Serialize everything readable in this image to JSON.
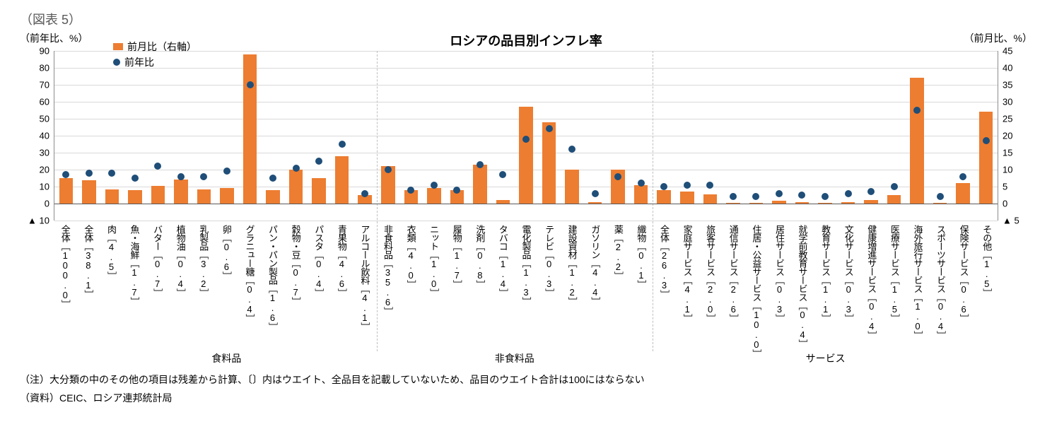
{
  "figure_label": "（図表 5）",
  "chart": {
    "title": "ロシアの品目別インフレ率",
    "yaxis_left": {
      "title": "（前年比、%）",
      "min": -10,
      "max": 90,
      "ticks": [
        -10,
        0,
        10,
        20,
        30,
        40,
        50,
        60,
        70,
        80,
        90
      ]
    },
    "yaxis_right": {
      "title": "（前月比、%）",
      "min": -5,
      "max": 45,
      "ticks": [
        -5,
        0,
        5,
        10,
        15,
        20,
        25,
        30,
        35,
        40,
        45
      ]
    },
    "legend": {
      "bar_label": "前月比（右軸）",
      "dot_label": "前年比"
    },
    "colors": {
      "bar": "#ed7d31",
      "dot": "#1f4e78",
      "grid": "#d9d9d9",
      "axis": "#8c8c8c",
      "background": "#ffffff",
      "divider": "#bfbfbf"
    },
    "bar_width": 0.6,
    "groups": [
      {
        "label": "食料品",
        "start": 1,
        "end": 13
      },
      {
        "label": "非食料品",
        "start": 14,
        "end": 25
      },
      {
        "label": "サービス",
        "start": 26,
        "end": 40
      }
    ],
    "items": [
      {
        "label": "全体［100.0］",
        "yoy": 17,
        "mom": 7.5
      },
      {
        "label": "全体［38.1］",
        "yoy": 18,
        "mom": 6.8
      },
      {
        "label": "肉［4.5］",
        "yoy": 18,
        "mom": 4.2
      },
      {
        "label": "魚・海鮮［1.7］",
        "yoy": 15,
        "mom": 4.0
      },
      {
        "label": "バター［0.7］",
        "yoy": 22,
        "mom": 5.2
      },
      {
        "label": "植物油［0.4］",
        "yoy": 16,
        "mom": 7.0
      },
      {
        "label": "乳製品［3.2］",
        "yoy": 16,
        "mom": 4.2
      },
      {
        "label": "卵［0.6］",
        "yoy": 19,
        "mom": 4.5
      },
      {
        "label": "グラニュー糖［0.4］",
        "yoy": 70,
        "mom": 44.0
      },
      {
        "label": "パン・パン製品［1.6］",
        "yoy": 15,
        "mom": 4.0
      },
      {
        "label": "穀物・豆［0.7］",
        "yoy": 21,
        "mom": 10.0
      },
      {
        "label": "パスタ［0.4］",
        "yoy": 25,
        "mom": 7.5
      },
      {
        "label": "青果物［4.6］",
        "yoy": 35,
        "mom": 14.0
      },
      {
        "label": "アルコール飲料［4.1］",
        "yoy": 6,
        "mom": 2.5
      },
      {
        "label": "非食料品［35.6］",
        "yoy": 20,
        "mom": 11.0
      },
      {
        "label": "衣類［4.0］",
        "yoy": 8,
        "mom": 4.0
      },
      {
        "label": "ニット［1.0］",
        "yoy": 11,
        "mom": 4.5
      },
      {
        "label": "履物［1.7］",
        "yoy": 8,
        "mom": 4.0
      },
      {
        "label": "洗剤［0.8］",
        "yoy": 23,
        "mom": 11.5
      },
      {
        "label": "タバコ［1.4］",
        "yoy": 17,
        "mom": 1.0
      },
      {
        "label": "電化製品［1.3］",
        "yoy": 38,
        "mom": 28.5
      },
      {
        "label": "テレビ［0.3］",
        "yoy": 44,
        "mom": 24.0
      },
      {
        "label": "建設資材［1.2］",
        "yoy": 32,
        "mom": 10.0
      },
      {
        "label": "ガソリン［4.4］",
        "yoy": 6,
        "mom": 0.5
      },
      {
        "label": "薬［2.2］",
        "yoy": 16,
        "mom": 10.0
      },
      {
        "label": "織物［0.1］",
        "yoy": 12,
        "mom": 5.5
      },
      {
        "label": "全体［26.3］",
        "yoy": 10,
        "mom": 4.0
      },
      {
        "label": "家庭サービス［4.1］",
        "yoy": 11,
        "mom": 3.5
      },
      {
        "label": "旅客サービス［2.0］",
        "yoy": 11,
        "mom": 2.8
      },
      {
        "label": "通信サービス［2.6］",
        "yoy": 4,
        "mom": 0.2
      },
      {
        "label": "住居・公益サービス［10.0］",
        "yoy": 4,
        "mom": 0.2
      },
      {
        "label": "居住サービス［0.3］",
        "yoy": 6,
        "mom": 0.8
      },
      {
        "label": "就学前教育サービス［0.4］",
        "yoy": 5,
        "mom": 0.5
      },
      {
        "label": "教育サービス［1.1］",
        "yoy": 4,
        "mom": 0.2
      },
      {
        "label": "文化サービス［0.3］",
        "yoy": 6,
        "mom": 0.5
      },
      {
        "label": "健康増進サービス［0.4］",
        "yoy": 7,
        "mom": 1.0
      },
      {
        "label": "医療サービス［1.5］",
        "yoy": 10,
        "mom": 2.5
      },
      {
        "label": "海外旅行サービス［1.0］",
        "yoy": 55,
        "mom": 37.0
      },
      {
        "label": "スポーツサービス［0.4］",
        "yoy": 4,
        "mom": 0.2
      },
      {
        "label": "保険サービス［0.6］",
        "yoy": 16,
        "mom": 6.0
      },
      {
        "label": "その他［1.5］",
        "yoy": 37,
        "mom": 27.0
      }
    ]
  },
  "left_neg_tick_display": "▲ 10",
  "right_neg_tick_display": "▲ 5",
  "note": "（注）大分類の中のその他の項目は残差から計算、〔〕内はウエイト、全品目を記載していないため、品目のウエイト合計は100にはならない",
  "source": "（資料）CEIC、ロシア連邦統計局"
}
